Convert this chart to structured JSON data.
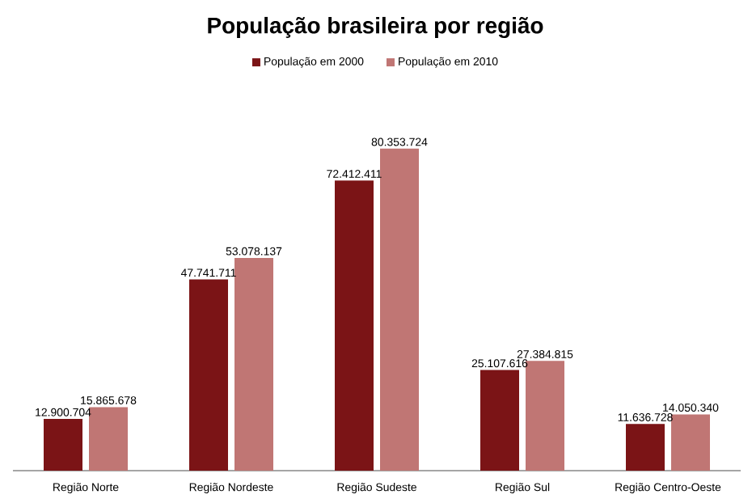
{
  "chart_data": {
    "type": "bar",
    "title": "População brasileira por região",
    "categories": [
      "Região Norte",
      "Região Nordeste",
      "Região Sudeste",
      "Região Sul",
      "Região Centro-Oeste"
    ],
    "series": [
      {
        "name": "População em 2000",
        "color": "#7b1416",
        "values": [
          12900704,
          47741711,
          72412411,
          25107616,
          11636728
        ],
        "value_labels": [
          "12.900.704",
          "47.741.711",
          "72.412.411",
          "25.107.616",
          "11.636.728"
        ]
      },
      {
        "name": "População em 2010",
        "color": "#c07674",
        "values": [
          15865678,
          53078137,
          80353724,
          27384815,
          14050340
        ],
        "value_labels": [
          "15.865.678",
          "53.078.137",
          "80.353.724",
          "27.384.815",
          "14.050.340"
        ]
      }
    ],
    "legend": "top"
  }
}
